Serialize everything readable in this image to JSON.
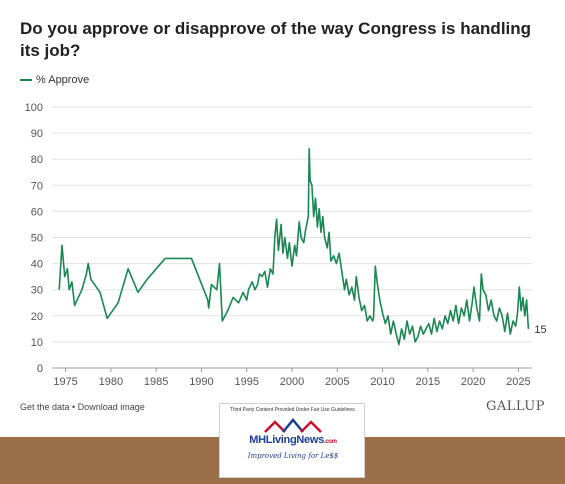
{
  "page": {
    "title": "Do you approve or disapprove of the way Congress is handling its job?",
    "footer_links": "Get the data • Download image",
    "logo_text": "GALLUP"
  },
  "watermark": {
    "notice": "Third Party Content Provided Under Fair Use Guidelines.",
    "brand": "MHLivingNews",
    "brand_suffix": ".com",
    "tagline": "Improved Living for Le$$"
  },
  "colors": {
    "series": "#1a8753",
    "grid": "#e3e3e3",
    "axis_text": "#555555",
    "band": "#9b7048"
  },
  "chart_data": {
    "type": "line",
    "title": "Do you approve or disapprove of the way Congress is handling its job?",
    "xlabel": "",
    "ylabel": "",
    "ylim": [
      0,
      100
    ],
    "yticks": [
      0,
      10,
      20,
      30,
      40,
      50,
      60,
      70,
      80,
      90,
      100
    ],
    "xlim": [
      1973.5,
      2026.5
    ],
    "xticks": [
      1975,
      1980,
      1985,
      1990,
      1995,
      2000,
      2005,
      2010,
      2015,
      2020,
      2025
    ],
    "grid": true,
    "legend_position": "top-left",
    "end_label": "15",
    "series": [
      {
        "name": "% Approve",
        "points": [
          [
            1974.3,
            30
          ],
          [
            1974.6,
            47
          ],
          [
            1974.9,
            35
          ],
          [
            1975.2,
            38
          ],
          [
            1975.4,
            30
          ],
          [
            1975.7,
            33
          ],
          [
            1976.0,
            24
          ],
          [
            1976.8,
            30
          ],
          [
            1977.3,
            36
          ],
          [
            1977.5,
            40
          ],
          [
            1977.8,
            34
          ],
          [
            1978.8,
            29
          ],
          [
            1979.6,
            19
          ],
          [
            1980.8,
            25
          ],
          [
            1981.9,
            38
          ],
          [
            1983.0,
            29
          ],
          [
            1984.0,
            34
          ],
          [
            1986.0,
            42
          ],
          [
            1988.9,
            42
          ],
          [
            1990.7,
            26
          ],
          [
            1990.8,
            23
          ],
          [
            1991.1,
            32
          ],
          [
            1991.7,
            30
          ],
          [
            1992.0,
            40
          ],
          [
            1992.3,
            18
          ],
          [
            1992.9,
            22
          ],
          [
            1993.5,
            27
          ],
          [
            1994.1,
            25
          ],
          [
            1994.6,
            29
          ],
          [
            1995.0,
            26
          ],
          [
            1995.2,
            30
          ],
          [
            1995.6,
            33
          ],
          [
            1995.9,
            30
          ],
          [
            1996.2,
            32
          ],
          [
            1996.4,
            36
          ],
          [
            1996.7,
            35
          ],
          [
            1997.0,
            37
          ],
          [
            1997.3,
            31
          ],
          [
            1997.6,
            38
          ],
          [
            1997.9,
            36
          ],
          [
            1998.1,
            50
          ],
          [
            1998.3,
            57
          ],
          [
            1998.5,
            45
          ],
          [
            1998.8,
            55
          ],
          [
            1999.0,
            44
          ],
          [
            1999.2,
            50
          ],
          [
            1999.5,
            42
          ],
          [
            1999.7,
            48
          ],
          [
            2000.0,
            39
          ],
          [
            2000.3,
            47
          ],
          [
            2000.5,
            43
          ],
          [
            2000.8,
            56
          ],
          [
            2001.0,
            50
          ],
          [
            2001.3,
            48
          ],
          [
            2001.5,
            53
          ],
          [
            2001.8,
            58
          ],
          [
            2001.9,
            84
          ],
          [
            2002.0,
            72
          ],
          [
            2002.2,
            70
          ],
          [
            2002.4,
            58
          ],
          [
            2002.6,
            65
          ],
          [
            2002.8,
            54
          ],
          [
            2003.0,
            61
          ],
          [
            2003.2,
            52
          ],
          [
            2003.4,
            58
          ],
          [
            2003.6,
            50
          ],
          [
            2003.9,
            46
          ],
          [
            2004.1,
            52
          ],
          [
            2004.3,
            41
          ],
          [
            2004.6,
            43
          ],
          [
            2004.9,
            40
          ],
          [
            2005.2,
            44
          ],
          [
            2005.5,
            37
          ],
          [
            2005.8,
            30
          ],
          [
            2006.0,
            34
          ],
          [
            2006.3,
            28
          ],
          [
            2006.6,
            31
          ],
          [
            2006.9,
            26
          ],
          [
            2007.1,
            35
          ],
          [
            2007.4,
            27
          ],
          [
            2007.7,
            22
          ],
          [
            2008.0,
            24
          ],
          [
            2008.3,
            18
          ],
          [
            2008.6,
            20
          ],
          [
            2008.9,
            18
          ],
          [
            2009.0,
            19
          ],
          [
            2009.2,
            39
          ],
          [
            2009.4,
            33
          ],
          [
            2009.7,
            26
          ],
          [
            2010.0,
            21
          ],
          [
            2010.3,
            17
          ],
          [
            2010.6,
            20
          ],
          [
            2010.9,
            13
          ],
          [
            2011.2,
            18
          ],
          [
            2011.5,
            13
          ],
          [
            2011.8,
            9
          ],
          [
            2012.1,
            15
          ],
          [
            2012.4,
            11
          ],
          [
            2012.7,
            18
          ],
          [
            2013.0,
            13
          ],
          [
            2013.3,
            16
          ],
          [
            2013.6,
            10
          ],
          [
            2013.9,
            12
          ],
          [
            2014.2,
            16
          ],
          [
            2014.5,
            13
          ],
          [
            2014.8,
            15
          ],
          [
            2015.1,
            17
          ],
          [
            2015.4,
            13
          ],
          [
            2015.7,
            19
          ],
          [
            2016.0,
            14
          ],
          [
            2016.3,
            18
          ],
          [
            2016.6,
            15
          ],
          [
            2016.9,
            20
          ],
          [
            2017.2,
            17
          ],
          [
            2017.5,
            22
          ],
          [
            2017.8,
            18
          ],
          [
            2018.1,
            24
          ],
          [
            2018.4,
            17
          ],
          [
            2018.7,
            23
          ],
          [
            2019.0,
            20
          ],
          [
            2019.3,
            26
          ],
          [
            2019.6,
            18
          ],
          [
            2019.9,
            25
          ],
          [
            2020.1,
            31
          ],
          [
            2020.4,
            23
          ],
          [
            2020.7,
            18
          ],
          [
            2020.9,
            36
          ],
          [
            2021.1,
            30
          ],
          [
            2021.4,
            28
          ],
          [
            2021.7,
            22
          ],
          [
            2022.0,
            26
          ],
          [
            2022.3,
            20
          ],
          [
            2022.6,
            18
          ],
          [
            2022.9,
            23
          ],
          [
            2023.2,
            20
          ],
          [
            2023.5,
            14
          ],
          [
            2023.8,
            21
          ],
          [
            2024.1,
            13
          ],
          [
            2024.4,
            18
          ],
          [
            2024.7,
            16
          ],
          [
            2024.9,
            21
          ],
          [
            2025.1,
            31
          ],
          [
            2025.3,
            22
          ],
          [
            2025.5,
            27
          ],
          [
            2025.7,
            20
          ],
          [
            2025.9,
            26
          ],
          [
            2026.1,
            15
          ]
        ]
      }
    ]
  }
}
